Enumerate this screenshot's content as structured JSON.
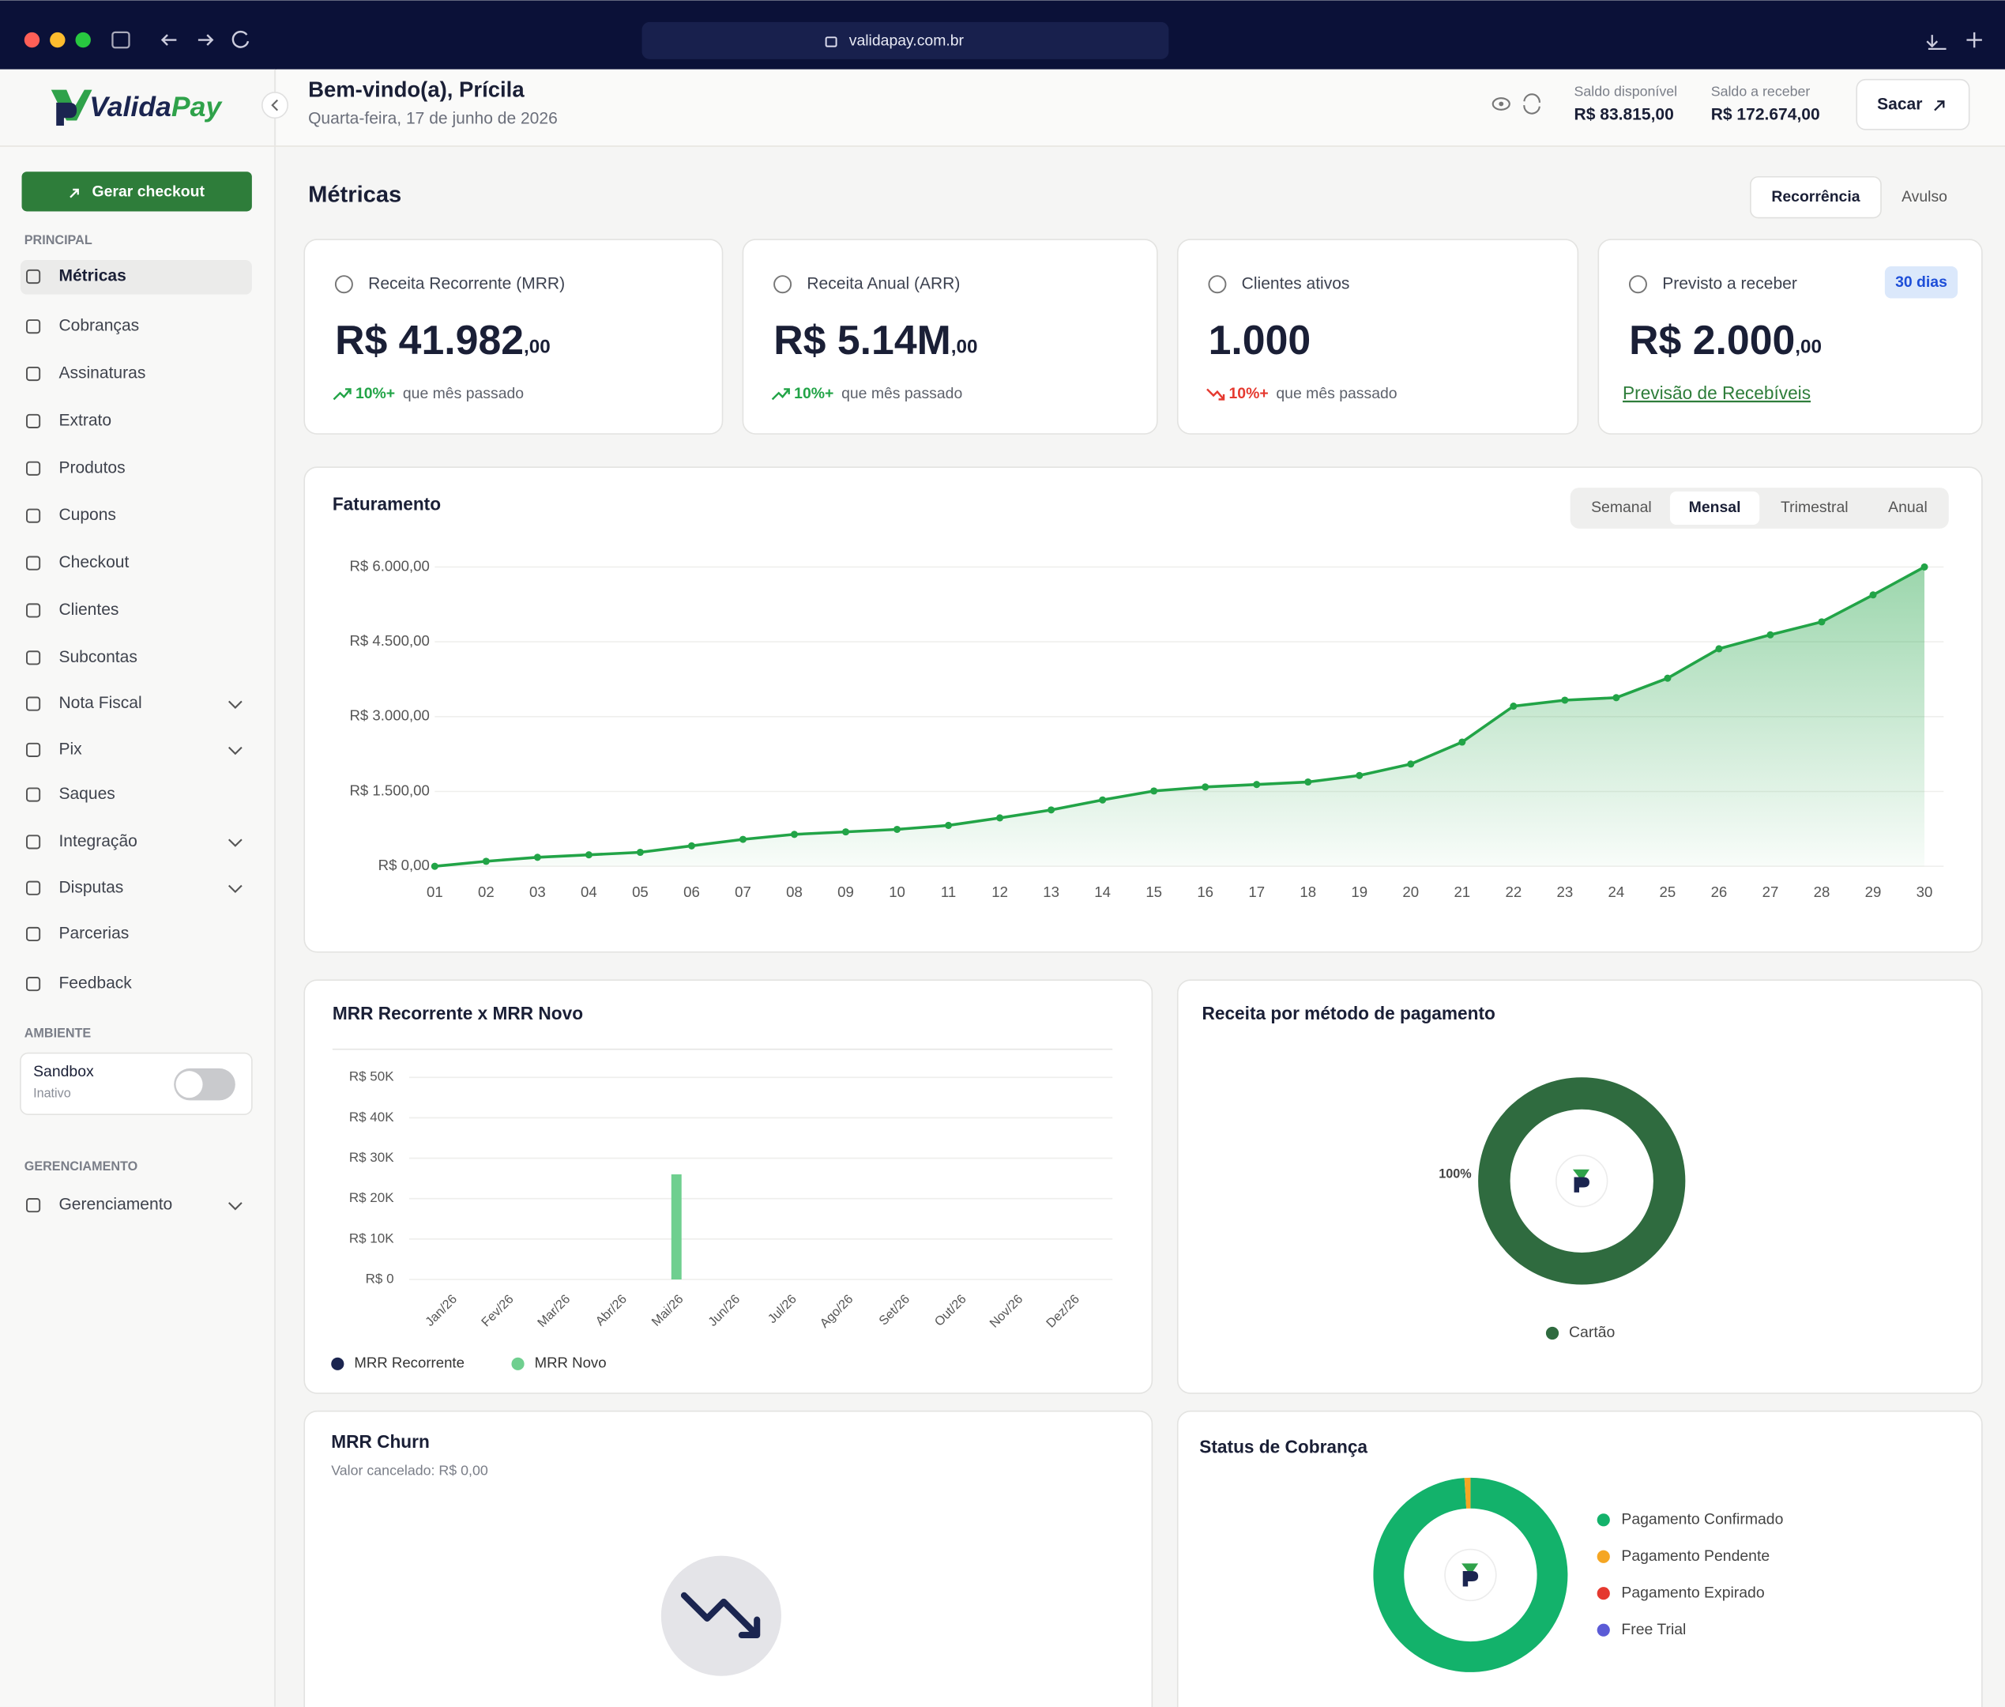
{
  "browser": {
    "url": "validapay.com.br"
  },
  "header": {
    "logo": {
      "part1": "Valida",
      "part2": "Pay"
    },
    "greeting": "Bem-vindo(a), Prícila",
    "date": "Quarta-feira, 17 de junho de 2026",
    "balances": [
      {
        "label": "Saldo disponível",
        "value": "R$ 83.815,00"
      },
      {
        "label": "Saldo a receber",
        "value": "R$ 172.674,00"
      }
    ],
    "button": "Sacar"
  },
  "sidebar": {
    "button": "Gerar checkout",
    "principal": {
      "title": "PRINCIPAL",
      "items": [
        {
          "label": "Métricas",
          "active": true
        },
        {
          "label": "Cobranças"
        },
        {
          "label": "Assinaturas"
        },
        {
          "label": "Extrato"
        },
        {
          "label": "Produtos"
        },
        {
          "label": "Cupons"
        },
        {
          "label": "Checkout"
        },
        {
          "label": "Clientes"
        },
        {
          "label": "Subcontas"
        },
        {
          "label": "Nota Fiscal",
          "expandable": true
        },
        {
          "label": "Pix",
          "expandable": true
        },
        {
          "label": "Saques"
        },
        {
          "label": "Integração",
          "expandable": true
        },
        {
          "label": "Disputas",
          "expandable": true
        },
        {
          "label": "Parcerias"
        },
        {
          "label": "Feedback"
        }
      ]
    },
    "ambiente": {
      "title": "AMBIENTE",
      "toggle": {
        "label": "Sandbox",
        "status": "Inativo",
        "on": false
      }
    },
    "gerenciamento": {
      "title": "GERENCIAMENTO",
      "items": [
        {
          "label": "Gerenciamento",
          "expandable": true
        }
      ]
    }
  },
  "main": {
    "title": "Métricas",
    "tabs": [
      {
        "label": "Recorrência",
        "active": true
      },
      {
        "label": "Avulso"
      }
    ],
    "cards": [
      {
        "label": "Receita Recorrente (MRR)",
        "value": "R$ 41.982",
        "cents": ",00",
        "change": "10%+",
        "note": "que mês passado",
        "trend": "up"
      },
      {
        "label": "Receita Anual (ARR)",
        "value": "R$ 5.14M",
        "cents": ",00",
        "change": "10%+",
        "note": "que mês passado",
        "trend": "up"
      },
      {
        "label": "Clientes ativos",
        "value": "1.000",
        "change": "10%+",
        "note": "que mês passado",
        "trend": "down"
      },
      {
        "label": "Previsto a receber",
        "badge": "30 dias",
        "value": "R$ 2.000",
        "cents": ",00",
        "link": "Previsão de Recebíveis"
      }
    ]
  },
  "faturamento": {
    "type": "line",
    "title": "Faturamento",
    "tabs": [
      {
        "label": "Semanal"
      },
      {
        "label": "Mensal",
        "active": true
      },
      {
        "label": "Trimestral"
      },
      {
        "label": "Anual"
      }
    ],
    "categories": [
      "01",
      "02",
      "03",
      "04",
      "05",
      "06",
      "07",
      "08",
      "09",
      "10",
      "11",
      "12",
      "13",
      "14",
      "15",
      "16",
      "17",
      "18",
      "19",
      "20",
      "21",
      "22",
      "23",
      "24",
      "25",
      "26",
      "27",
      "28",
      "29",
      "30"
    ],
    "values": [
      0,
      100,
      180,
      230,
      280,
      410,
      540,
      640,
      690,
      740,
      820,
      970,
      1130,
      1330,
      1510,
      1590,
      1640,
      1690,
      1820,
      2050,
      2490,
      3210,
      3330,
      3380,
      3770,
      4360,
      4640,
      4900,
      5440,
      6000
    ],
    "color": "#22a447",
    "ylim": [
      0,
      6000
    ],
    "yticks": [
      {
        "value": 0,
        "label": "R$ 0,00"
      },
      {
        "value": 1500,
        "label": "R$ 1.500,00"
      },
      {
        "value": 3000,
        "label": "R$ 3.000,00"
      },
      {
        "value": 4500,
        "label": "R$ 4.500,00"
      },
      {
        "value": 6000,
        "label": "R$ 6.000,00"
      }
    ],
    "grid": true
  },
  "mrr_chart": {
    "type": "bar",
    "title": "MRR Recorrente x MRR Novo",
    "categories": [
      "Jan/26",
      "Fev/26",
      "Mar/26",
      "Abr/26",
      "Mai/26",
      "Jun/26",
      "Jul/26",
      "Ago/26",
      "Set/26",
      "Out/26",
      "Nov/26",
      "Dez/26"
    ],
    "series": [
      {
        "name": "MRR Recorrente",
        "color": "#1b2550",
        "values": [
          0,
          0,
          0,
          0,
          0,
          0,
          0,
          0,
          0,
          0,
          0,
          0
        ]
      },
      {
        "name": "MRR Novo",
        "color": "#6fcf8f",
        "values": [
          0,
          0,
          0,
          0,
          26000,
          0,
          0,
          0,
          0,
          0,
          0,
          0
        ]
      }
    ],
    "ylim": [
      0,
      50000
    ],
    "yticks": [
      {
        "value": 0,
        "label": "R$ 0"
      },
      {
        "value": 10000,
        "label": "R$ 10K"
      },
      {
        "value": 20000,
        "label": "R$ 20K"
      },
      {
        "value": 30000,
        "label": "R$ 30K"
      },
      {
        "value": 40000,
        "label": "R$ 40K"
      },
      {
        "value": 50000,
        "label": "R$ 50K"
      }
    ],
    "grid": true
  },
  "payment_methods": {
    "type": "pie",
    "title": "Receita por método de pagamento",
    "series": [
      {
        "name": "Cartão",
        "color": "#2f6b3f",
        "values": [
          100
        ],
        "value_labels": [
          "100%"
        ]
      }
    ]
  },
  "churn": {
    "title": "MRR Churn",
    "subtitle": "Valor cancelado: R$ 0,00"
  },
  "status": {
    "type": "pie",
    "title": "Status de Cobrança",
    "series": [
      {
        "name": "Pagamento Confirmado",
        "color": "#13b26b",
        "values": [
          99
        ]
      },
      {
        "name": "Pagamento Pendente",
        "color": "#f5a623",
        "values": [
          1
        ]
      },
      {
        "name": "Pagamento Expirado",
        "color": "#e5392f",
        "values": [
          0
        ]
      },
      {
        "name": "Free Trial",
        "color": "#5b5bd6",
        "values": [
          0
        ]
      }
    ]
  }
}
